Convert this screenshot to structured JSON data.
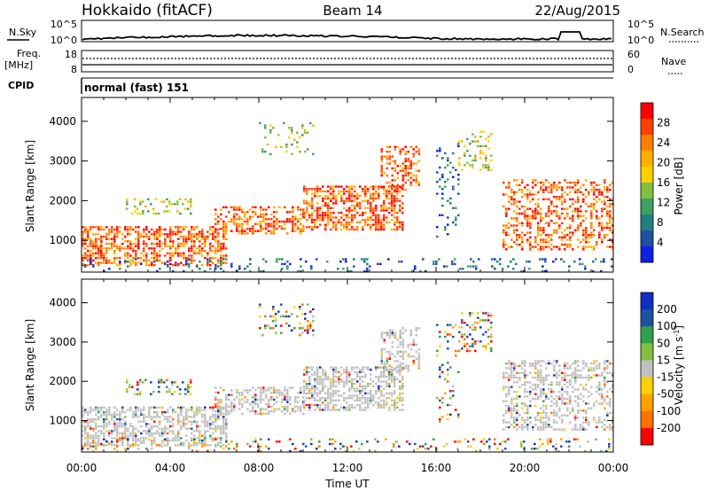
{
  "header": {
    "station": "Hokkaido (fitACF)",
    "beam": "Beam 14",
    "date": "22/Aug/2015"
  },
  "noise_panel": {
    "left_label": "N.Sky",
    "right_label": "N.Search",
    "left_ticks": [
      "10^5",
      "10^0"
    ],
    "right_ticks": [
      "10^5",
      "10^0"
    ]
  },
  "freq_panel": {
    "left_label_1": "Freq.",
    "left_label_2": "[MHz]",
    "right_label": "Nave",
    "left_ticks": [
      "18",
      "8"
    ],
    "right_ticks": [
      "60",
      "0"
    ]
  },
  "cpid_panel": {
    "label": "CPID",
    "program": "normal (fast) 151"
  },
  "chart_data": [
    {
      "type": "heatmap",
      "title": "",
      "ylabel": "Slant Range [km]",
      "xlabel": "",
      "quantity": "Power",
      "colorbar_label": "Power [dB]",
      "colorbar_ticks": [
        "28",
        "24",
        "20",
        "16",
        "12",
        "8",
        "4"
      ],
      "colorbar_colors": [
        "#ff0000",
        "#ff4000",
        "#ff8000",
        "#ffb000",
        "#ffd000",
        "#80c040",
        "#40a060",
        "#208080",
        "#2050a0",
        "#1020e0"
      ],
      "y_ticks": [
        "4000",
        "3000",
        "2000",
        "1000"
      ],
      "ylim": [
        200,
        4600
      ]
    },
    {
      "type": "heatmap",
      "title": "",
      "ylabel": "Slant Range [km]",
      "xlabel": "Time UT",
      "quantity": "Velocity",
      "colorbar_label": "Velocity [m s-1]",
      "colorbar_ticks": [
        "200",
        "100",
        "50",
        "15",
        "-15",
        "-50",
        "-100",
        "-200"
      ],
      "colorbar_colors": [
        "#1030c0",
        "#2050a0",
        "#30a050",
        "#80c040",
        "#c0c0c0",
        "#ffd000",
        "#ffa000",
        "#ff7000",
        "#ff0000"
      ],
      "y_ticks": [
        "4000",
        "3000",
        "2000",
        "1000"
      ],
      "x_ticks": [
        "00:00",
        "04:00",
        "08:00",
        "12:00",
        "16:00",
        "20:00",
        "00:00"
      ],
      "ylim": [
        200,
        4600
      ]
    }
  ],
  "colors": {
    "power_high": "#ff2000",
    "power_mid": "#ffa000",
    "power_low": "#40a060",
    "velocity_ground": "#c0c0c0",
    "velocity_pos": "#80c040"
  }
}
